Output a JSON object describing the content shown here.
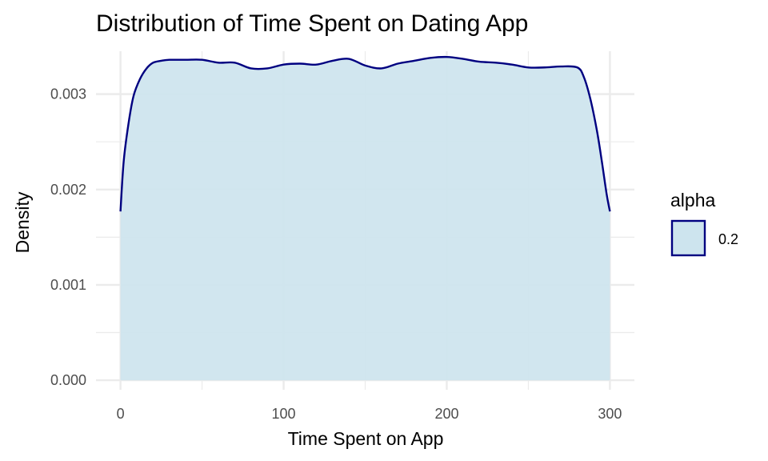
{
  "chart_data": {
    "type": "area",
    "title": "Distribution of Time Spent on Dating App",
    "xlabel": "Time Spent on App",
    "ylabel": "Density",
    "xlim": [
      -15,
      315
    ],
    "ylim": [
      -0.0001,
      0.00345
    ],
    "x_ticks": [
      0,
      100,
      200,
      300
    ],
    "x_tick_labels": [
      "0",
      "100",
      "200",
      "300"
    ],
    "y_ticks": [
      0.0,
      0.001,
      0.002,
      0.003
    ],
    "y_tick_labels": [
      "0.000",
      "0.001",
      "0.002",
      "0.003"
    ],
    "x_minor_ticks": [
      50,
      150,
      250
    ],
    "y_minor_ticks": [
      0.0005,
      0.0015,
      0.0025
    ],
    "grid": true,
    "fill_color": "#cde4ee",
    "line_color": "#000080",
    "grid_color": "#ebebeb",
    "legend": {
      "title": "alpha",
      "placement": "right",
      "entries": [
        {
          "label": "0.2"
        }
      ]
    },
    "series": [
      {
        "x": [
          0,
          2,
          5,
          8,
          12,
          16,
          20,
          25,
          30,
          40,
          50,
          60,
          70,
          80,
          90,
          100,
          110,
          120,
          130,
          140,
          150,
          160,
          170,
          180,
          190,
          200,
          210,
          220,
          230,
          240,
          250,
          260,
          270,
          280,
          284,
          288,
          292,
          295,
          298,
          300
        ],
        "y": [
          0.00177,
          0.0023,
          0.0027,
          0.00298,
          0.00316,
          0.00327,
          0.00333,
          0.00335,
          0.00336,
          0.00336,
          0.00336,
          0.00333,
          0.00333,
          0.00327,
          0.00327,
          0.00331,
          0.00332,
          0.00331,
          0.00335,
          0.00337,
          0.0033,
          0.00327,
          0.00332,
          0.00335,
          0.00338,
          0.00339,
          0.00337,
          0.00334,
          0.00333,
          0.00331,
          0.00328,
          0.00328,
          0.00329,
          0.00328,
          0.00318,
          0.00295,
          0.00262,
          0.0023,
          0.00195,
          0.00177
        ]
      }
    ]
  }
}
